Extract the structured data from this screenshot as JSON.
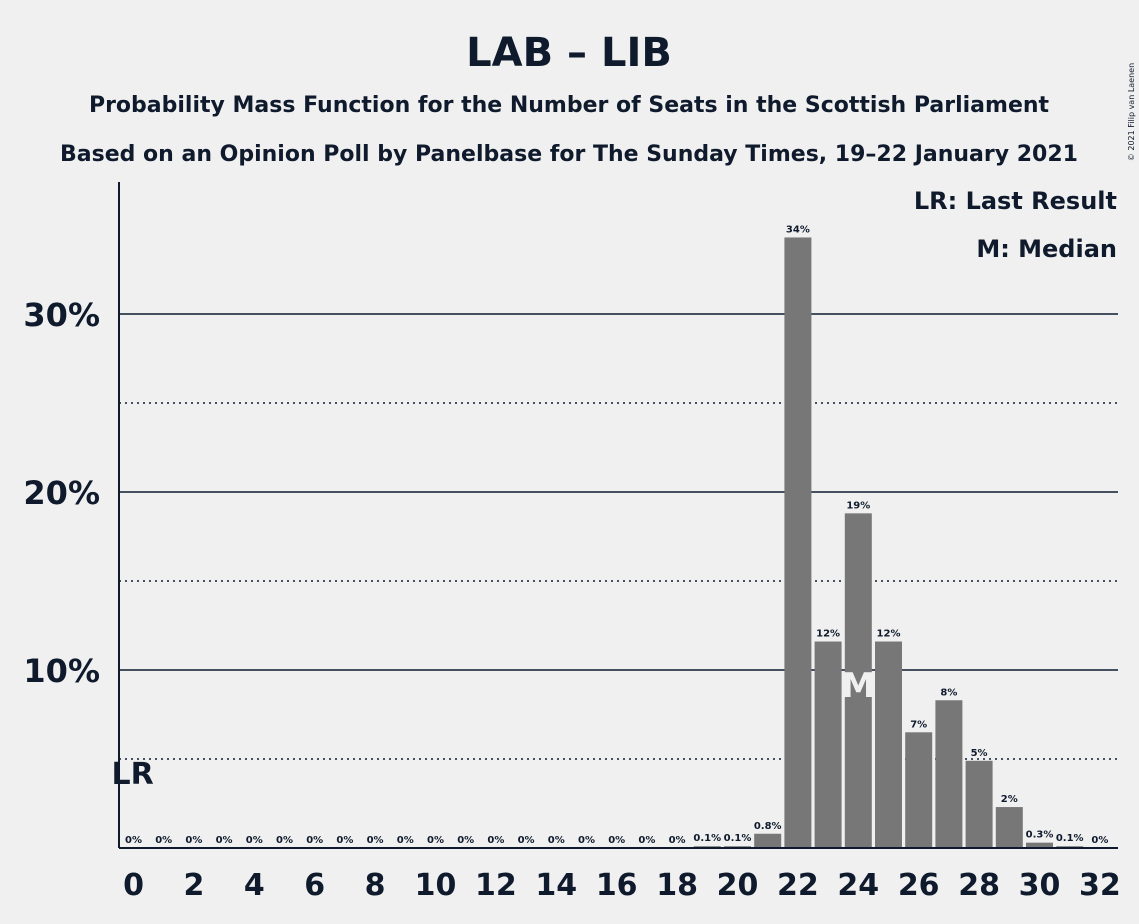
{
  "chart_data": {
    "type": "bar",
    "title": "LAB – LIB",
    "subtitle_lines": [
      "Probability Mass Function for the Number of Seats in the Scottish Parliament",
      "Based on an Opinion Poll by Panelbase for The Sunday Times, 19–22 January 2021"
    ],
    "copyright": "© 2021 Filip van Laenen",
    "legend": [
      "LR: Last Result",
      "M: Median"
    ],
    "x": [
      0,
      1,
      2,
      3,
      4,
      5,
      6,
      7,
      8,
      9,
      10,
      11,
      12,
      13,
      14,
      15,
      16,
      17,
      18,
      19,
      20,
      21,
      22,
      23,
      24,
      25,
      26,
      27,
      28,
      29,
      30,
      31,
      32
    ],
    "values": [
      0,
      0,
      0,
      0,
      0,
      0,
      0,
      0,
      0,
      0,
      0,
      0,
      0,
      0,
      0,
      0,
      0,
      0,
      0,
      0.1,
      0.1,
      0.8,
      34.3,
      11.6,
      18.8,
      11.6,
      6.5,
      8.3,
      4.9,
      2.3,
      0.3,
      0.1,
      0
    ],
    "value_labels": [
      "0%",
      "0%",
      "0%",
      "0%",
      "0%",
      "0%",
      "0%",
      "0%",
      "0%",
      "0%",
      "0%",
      "0%",
      "0%",
      "0%",
      "0%",
      "0%",
      "0%",
      "0%",
      "0%",
      "0.1%",
      "0.1%",
      "0.8%",
      "34%",
      "12%",
      "19%",
      "12%",
      "7%",
      "8%",
      "5%",
      "2%",
      "0.3%",
      "0.1%",
      "0%"
    ],
    "xticks": [
      "0",
      "2",
      "4",
      "6",
      "8",
      "10",
      "12",
      "14",
      "16",
      "18",
      "20",
      "22",
      "24",
      "26",
      "28",
      "30",
      "32"
    ],
    "yticks": [
      {
        "value": 10,
        "label": "10%"
      },
      {
        "value": 20,
        "label": "20%"
      },
      {
        "value": 30,
        "label": "30%"
      }
    ],
    "minor_gridlines": [
      5,
      15,
      25
    ],
    "ylim": [
      0,
      37
    ],
    "last_result": {
      "x": 0,
      "label": "LR"
    },
    "median": {
      "x": 24,
      "label": "M"
    },
    "bar_color": "#777777",
    "background": "#f0f0f0"
  }
}
